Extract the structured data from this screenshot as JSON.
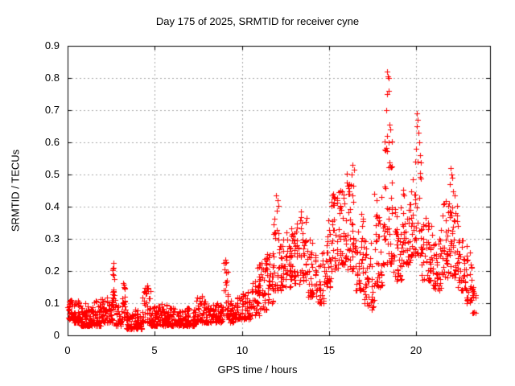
{
  "page": {
    "background": "#ffffff"
  },
  "chart_data": {
    "type": "scatter",
    "title": "Day 175 of 2025, SRMTID for receiver cyne",
    "xlabel": "GPS time / hours",
    "ylabel": "SRMTID / TECUs",
    "xlim": [
      0,
      24.24
    ],
    "ylim": [
      0,
      0.9
    ],
    "x_ticks": [
      {
        "v": 0,
        "label": "0"
      },
      {
        "v": 5,
        "label": "5"
      },
      {
        "v": 10,
        "label": "10"
      },
      {
        "v": 15,
        "label": "15"
      },
      {
        "v": 20,
        "label": "20"
      }
    ],
    "y_ticks": [
      {
        "v": 0.0,
        "label": "0"
      },
      {
        "v": 0.1,
        "label": "0.1"
      },
      {
        "v": 0.2,
        "label": "0.2"
      },
      {
        "v": 0.3,
        "label": "0.3"
      },
      {
        "v": 0.4,
        "label": "0.4"
      },
      {
        "v": 0.5,
        "label": "0.5"
      },
      {
        "v": 0.6,
        "label": "0.6"
      },
      {
        "v": 0.7,
        "label": "0.7"
      },
      {
        "v": 0.8,
        "label": "0.8"
      },
      {
        "v": 0.9,
        "label": "0.9"
      }
    ],
    "grid": true,
    "legend": "none",
    "marker": "plus",
    "marker_color": "#ff0000",
    "axis_color": "#000000",
    "grid_color": "#a6a6a6",
    "seed": 20250175,
    "band_segments": [
      [
        0.0,
        0.3,
        0.05,
        0.12,
        30
      ],
      [
        0.3,
        0.7,
        0.04,
        0.11,
        40
      ],
      [
        0.7,
        1.1,
        0.03,
        0.1,
        40
      ],
      [
        1.1,
        1.5,
        0.03,
        0.09,
        40
      ],
      [
        1.5,
        1.9,
        0.03,
        0.11,
        40
      ],
      [
        1.9,
        2.3,
        0.04,
        0.12,
        40
      ],
      [
        2.3,
        2.6,
        0.04,
        0.13,
        30
      ],
      [
        2.55,
        2.75,
        0.08,
        0.22,
        18
      ],
      [
        2.75,
        3.1,
        0.03,
        0.1,
        35
      ],
      [
        3.1,
        3.35,
        0.05,
        0.16,
        20
      ],
      [
        3.35,
        3.8,
        0.02,
        0.07,
        45
      ],
      [
        3.8,
        4.3,
        0.02,
        0.08,
        45
      ],
      [
        4.3,
        4.75,
        0.04,
        0.15,
        40
      ],
      [
        4.75,
        5.2,
        0.03,
        0.09,
        45
      ],
      [
        5.2,
        5.7,
        0.03,
        0.1,
        45
      ],
      [
        5.7,
        6.2,
        0.03,
        0.09,
        45
      ],
      [
        6.2,
        6.8,
        0.03,
        0.08,
        50
      ],
      [
        6.8,
        7.4,
        0.03,
        0.09,
        50
      ],
      [
        7.4,
        7.9,
        0.04,
        0.12,
        40
      ],
      [
        7.9,
        8.5,
        0.04,
        0.1,
        50
      ],
      [
        8.5,
        8.95,
        0.04,
        0.1,
        40
      ],
      [
        8.95,
        9.2,
        0.06,
        0.23,
        22
      ],
      [
        9.2,
        9.6,
        0.04,
        0.11,
        35
      ],
      [
        9.6,
        10.0,
        0.05,
        0.12,
        35
      ],
      [
        10.0,
        10.5,
        0.05,
        0.14,
        40
      ],
      [
        10.5,
        11.0,
        0.06,
        0.17,
        40
      ],
      [
        11.0,
        11.4,
        0.08,
        0.24,
        35
      ],
      [
        11.4,
        11.8,
        0.1,
        0.33,
        35
      ],
      [
        11.8,
        12.3,
        0.14,
        0.42,
        40
      ],
      [
        12.3,
        12.8,
        0.15,
        0.33,
        40
      ],
      [
        12.8,
        13.2,
        0.16,
        0.35,
        35
      ],
      [
        13.2,
        13.7,
        0.16,
        0.38,
        35
      ],
      [
        13.7,
        14.2,
        0.12,
        0.3,
        35
      ],
      [
        14.2,
        14.7,
        0.1,
        0.26,
        35
      ],
      [
        14.7,
        15.1,
        0.15,
        0.38,
        35
      ],
      [
        15.1,
        15.6,
        0.2,
        0.44,
        40
      ],
      [
        15.6,
        16.0,
        0.22,
        0.47,
        35
      ],
      [
        16.0,
        16.5,
        0.2,
        0.52,
        40
      ],
      [
        16.5,
        17.0,
        0.14,
        0.38,
        40
      ],
      [
        17.0,
        17.6,
        0.08,
        0.3,
        40
      ],
      [
        17.6,
        18.1,
        0.15,
        0.45,
        40
      ],
      [
        18.1,
        18.65,
        0.22,
        0.62,
        45
      ],
      [
        18.65,
        19.2,
        0.17,
        0.4,
        40
      ],
      [
        19.2,
        19.7,
        0.22,
        0.46,
        40
      ],
      [
        19.7,
        20.3,
        0.25,
        0.55,
        45
      ],
      [
        20.3,
        20.9,
        0.17,
        0.37,
        45
      ],
      [
        20.9,
        21.5,
        0.14,
        0.33,
        45
      ],
      [
        21.5,
        22.0,
        0.18,
        0.42,
        40
      ],
      [
        22.0,
        22.4,
        0.18,
        0.46,
        35
      ],
      [
        22.4,
        22.9,
        0.14,
        0.3,
        40
      ],
      [
        22.9,
        23.2,
        0.1,
        0.26,
        25
      ],
      [
        23.2,
        23.45,
        0.07,
        0.15,
        15
      ]
    ],
    "outlier_points": [
      [
        2.6,
        0.19
      ],
      [
        2.62,
        0.225
      ],
      [
        2.64,
        0.21
      ],
      [
        2.67,
        0.175
      ],
      [
        3.2,
        0.163
      ],
      [
        3.22,
        0.15
      ],
      [
        4.55,
        0.155
      ],
      [
        4.6,
        0.148
      ],
      [
        7.7,
        0.122
      ],
      [
        9.0,
        0.205
      ],
      [
        9.03,
        0.235
      ],
      [
        9.06,
        0.225
      ],
      [
        9.1,
        0.195
      ],
      [
        10.9,
        0.21
      ],
      [
        11.97,
        0.435
      ],
      [
        12.03,
        0.42
      ],
      [
        13.4,
        0.385
      ],
      [
        15.3,
        0.43
      ],
      [
        15.55,
        0.445
      ],
      [
        16.3,
        0.5
      ],
      [
        16.35,
        0.53
      ],
      [
        16.42,
        0.515
      ],
      [
        18.3,
        0.7
      ],
      [
        18.33,
        0.75
      ],
      [
        18.35,
        0.82
      ],
      [
        18.38,
        0.805
      ],
      [
        18.4,
        0.8
      ],
      [
        18.43,
        0.76
      ],
      [
        18.46,
        0.655
      ],
      [
        18.5,
        0.64
      ],
      [
        18.34,
        0.62
      ],
      [
        18.41,
        0.6
      ],
      [
        19.98,
        0.58
      ],
      [
        20.02,
        0.65
      ],
      [
        20.05,
        0.69
      ],
      [
        20.08,
        0.67
      ],
      [
        20.12,
        0.63
      ],
      [
        20.16,
        0.6
      ],
      [
        20.22,
        0.56
      ],
      [
        21.92,
        0.47
      ],
      [
        21.97,
        0.52
      ],
      [
        22.02,
        0.5
      ],
      [
        22.07,
        0.49
      ]
    ]
  }
}
